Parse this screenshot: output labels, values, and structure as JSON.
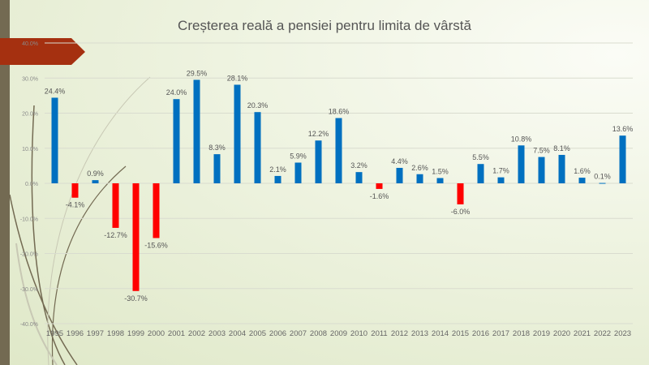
{
  "chart_data": {
    "type": "bar",
    "title": "Creșterea reală a pensiei pentru limita de vârstă",
    "categories": [
      "1995",
      "1996",
      "1997",
      "1998",
      "1999",
      "2000",
      "2001",
      "2002",
      "2003",
      "2004",
      "2005",
      "2006",
      "2007",
      "2008",
      "2009",
      "2010",
      "2011",
      "2012",
      "2013",
      "2014",
      "2015",
      "2016",
      "2017",
      "2018",
      "2019",
      "2020",
      "2021",
      "2022",
      "2023"
    ],
    "values": [
      24.4,
      -4.1,
      0.9,
      -12.7,
      -30.7,
      -15.6,
      24.0,
      29.5,
      8.3,
      28.1,
      20.3,
      2.1,
      5.9,
      12.2,
      18.6,
      3.2,
      -1.6,
      4.4,
      2.6,
      1.5,
      -6.0,
      5.5,
      1.7,
      10.8,
      7.5,
      8.1,
      1.6,
      0.1,
      13.6
    ],
    "data_labels": [
      "24.4%",
      "-4.1%",
      "0.9%",
      "-12.7%",
      "-30.7%",
      "-15.6%",
      "24.0%",
      "29.5%",
      "8.3%",
      "28.1%",
      "20.3%",
      "2.1%",
      "5.9%",
      "12.2%",
      "18.6%",
      "3.2%",
      "-1.6%",
      "4.4%",
      "2.6%",
      "1.5%",
      "-6.0%",
      "5.5%",
      "1.7%",
      "10.8%",
      "7.5%",
      "8.1%",
      "1.6%",
      "0.1%",
      "13.6%"
    ],
    "yticks": [
      "40.0%",
      "30.0%",
      "20.0%",
      "10.0%",
      "0.0%",
      "-10.0%",
      "-20.0%",
      "-30.0%",
      "-40.0%"
    ],
    "ylim": [
      -40,
      40
    ],
    "grid": true,
    "colors": {
      "positive": "#0070c0",
      "negative": "#ff0000"
    }
  }
}
